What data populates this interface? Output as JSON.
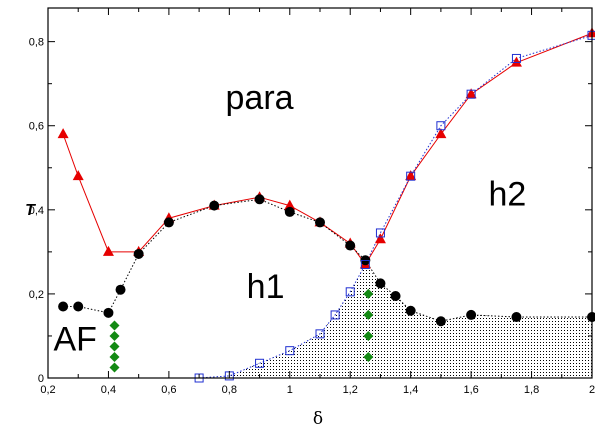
{
  "chart_data": {
    "type": "scatter",
    "title": "",
    "xlabel": "δ",
    "ylabel": "T",
    "xlim": [
      0.2,
      2.0
    ],
    "ylim": [
      0,
      0.88
    ],
    "xticks": [
      0.2,
      0.4,
      0.6,
      0.8,
      1.0,
      1.2,
      1.4,
      1.6,
      1.8,
      2.0
    ],
    "xtick_labels": [
      "0,2",
      "0,4",
      "0,6",
      "0,8",
      "1",
      "1,2",
      "1,4",
      "1,6",
      "1,8",
      "2"
    ],
    "yticks": [
      0,
      0.2,
      0.4,
      0.6,
      0.8
    ],
    "ytick_labels": [
      "0",
      "0,2",
      "0,4",
      "0,6",
      "0,8"
    ],
    "grid": false,
    "legend": "none",
    "annotations": [
      {
        "text": "para",
        "x": 0.9,
        "y": 0.64
      },
      {
        "text": "h1",
        "x": 0.92,
        "y": 0.19
      },
      {
        "text": "h2",
        "x": 1.72,
        "y": 0.41
      },
      {
        "text": "AF",
        "x": 0.29,
        "y": 0.065
      }
    ],
    "series": [
      {
        "marker": "red-triangle",
        "color": "#e60000",
        "line": "solid",
        "x": [
          0.25,
          0.3,
          0.4,
          0.5,
          0.6,
          0.75,
          0.9,
          1.0,
          1.1,
          1.2,
          1.25,
          1.3,
          1.4,
          1.5,
          1.6,
          1.75,
          2.0
        ],
        "y": [
          0.58,
          0.48,
          0.3,
          0.3,
          0.38,
          0.41,
          0.43,
          0.41,
          0.37,
          0.32,
          0.27,
          0.33,
          0.48,
          0.58,
          0.675,
          0.75,
          0.82
        ]
      },
      {
        "marker": "black-circle",
        "color": "#000000",
        "line": "dotted",
        "x": [
          0.25,
          0.3,
          0.4,
          0.44,
          0.5,
          0.6,
          0.75,
          0.9,
          1.0,
          1.1,
          1.2,
          1.25,
          1.3,
          1.35,
          1.4,
          1.5,
          1.6,
          1.75,
          2.0
        ],
        "y": [
          0.17,
          0.17,
          0.155,
          0.21,
          0.295,
          0.37,
          0.41,
          0.425,
          0.395,
          0.37,
          0.315,
          0.28,
          0.225,
          0.195,
          0.16,
          0.135,
          0.15,
          0.145,
          0.145
        ]
      },
      {
        "marker": "blue-open-square",
        "color": "#1f2fd1",
        "line": "dotted",
        "x": [
          0.7,
          0.8,
          0.9,
          1.0,
          1.1,
          1.15,
          1.2,
          1.25,
          1.3,
          1.4,
          1.5,
          1.6,
          1.75,
          2.0
        ],
        "y": [
          0.0,
          0.005,
          0.035,
          0.065,
          0.105,
          0.15,
          0.205,
          0.27,
          0.345,
          0.48,
          0.6,
          0.675,
          0.76,
          0.815
        ]
      },
      {
        "marker": "green-diamond",
        "color": "#138a13",
        "line": "none",
        "x": [
          0.42,
          0.42,
          0.42,
          0.42,
          0.42,
          1.26,
          1.26,
          1.26,
          1.26
        ],
        "y": [
          0.025,
          0.05,
          0.075,
          0.1,
          0.125,
          0.05,
          0.1,
          0.15,
          0.2
        ]
      }
    ],
    "shaded_region": {
      "pattern": "dotted",
      "upper_boundary": [
        [
          0.7,
          0.0
        ],
        [
          0.8,
          0.005
        ],
        [
          0.9,
          0.035
        ],
        [
          1.0,
          0.065
        ],
        [
          1.1,
          0.105
        ],
        [
          1.15,
          0.15
        ],
        [
          1.2,
          0.205
        ],
        [
          1.25,
          0.27
        ],
        [
          1.3,
          0.225
        ],
        [
          1.35,
          0.195
        ],
        [
          1.4,
          0.16
        ],
        [
          1.5,
          0.135
        ],
        [
          1.6,
          0.15
        ],
        [
          1.75,
          0.145
        ],
        [
          2.0,
          0.145
        ]
      ]
    }
  }
}
